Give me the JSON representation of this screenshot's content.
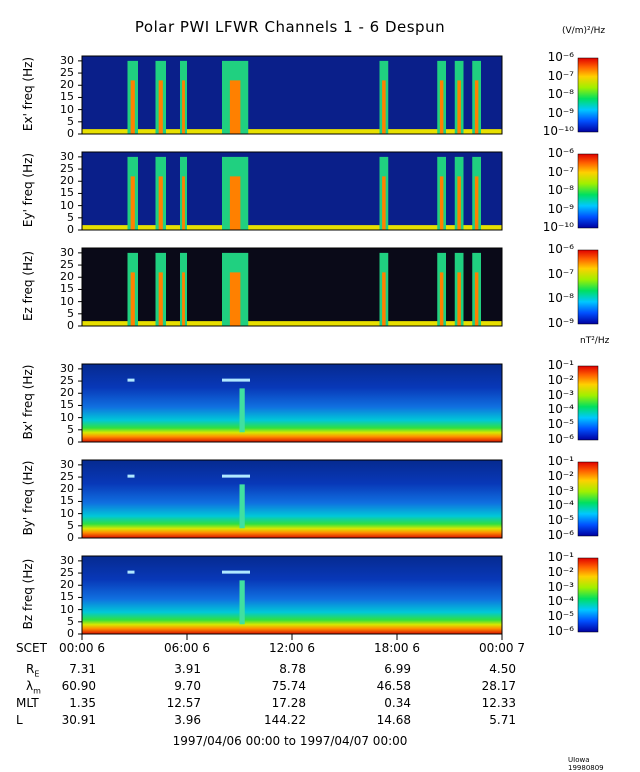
{
  "chart_data": {
    "type": "heatmap",
    "title": "Polar PWI LFWR Channels 1 - 6 Despun",
    "electric_units": "(V/m)²/Hz",
    "magnetic_units": "nT²/Hz",
    "y_range": [
      0,
      32
    ],
    "y_ticks": [
      "0",
      "5",
      "10",
      "15",
      "20",
      "25",
      "30"
    ],
    "x_range_hours": [
      0,
      24
    ],
    "panels": [
      {
        "ylabel": "Ex' freq (Hz)",
        "colorbar_ticks": [
          "10⁻⁶",
          "10⁻⁷",
          "10⁻⁸",
          "10⁻⁹",
          "10⁻¹⁰"
        ],
        "kind": "electric"
      },
      {
        "ylabel": "Ey' freq (Hz)",
        "colorbar_ticks": [
          "10⁻⁶",
          "10⁻⁷",
          "10⁻⁸",
          "10⁻⁹",
          "10⁻¹⁰"
        ],
        "kind": "electric"
      },
      {
        "ylabel": "Ez freq (Hz)",
        "colorbar_ticks": [
          "10⁻⁶",
          "10⁻⁷",
          "10⁻⁸",
          "10⁻⁹"
        ],
        "kind": "electric_z"
      },
      {
        "ylabel": "Bx' freq (Hz)",
        "colorbar_ticks": [
          "10⁻¹",
          "10⁻²",
          "10⁻³",
          "10⁻⁴",
          "10⁻⁵",
          "10⁻⁶"
        ],
        "kind": "magnetic"
      },
      {
        "ylabel": "By' freq (Hz)",
        "colorbar_ticks": [
          "10⁻¹",
          "10⁻²",
          "10⁻³",
          "10⁻⁴",
          "10⁻⁵",
          "10⁻⁶"
        ],
        "kind": "magnetic"
      },
      {
        "ylabel": "Bz freq (Hz)",
        "colorbar_ticks": [
          "10⁻¹",
          "10⁻²",
          "10⁻³",
          "10⁻⁴",
          "10⁻⁵",
          "10⁻⁶"
        ],
        "kind": "magnetic"
      }
    ],
    "x_axis": {
      "row_label": "SCET",
      "ticks": [
        "00:00 6",
        "06:00 6",
        "12:00 6",
        "18:00 6",
        "00:00 7"
      ]
    },
    "ephemeris": [
      {
        "label": "R",
        "sub": "E",
        "values": [
          "7.31",
          "3.91",
          "8.78",
          "6.99",
          "4.50"
        ]
      },
      {
        "label": "λ",
        "sub": "m",
        "values": [
          "60.90",
          "9.70",
          "75.74",
          "46.58",
          "28.17"
        ]
      },
      {
        "label": "MLT",
        "sub": "",
        "values": [
          "1.35",
          "12.57",
          "17.28",
          "0.34",
          "12.33"
        ]
      },
      {
        "label": "L",
        "sub": "",
        "values": [
          "30.91",
          "3.96",
          "144.22",
          "14.68",
          "5.71"
        ]
      }
    ],
    "date_range": "1997/04/06 00:00 to 1997/04/07 00:00",
    "footer": "UIowa 19980809"
  }
}
